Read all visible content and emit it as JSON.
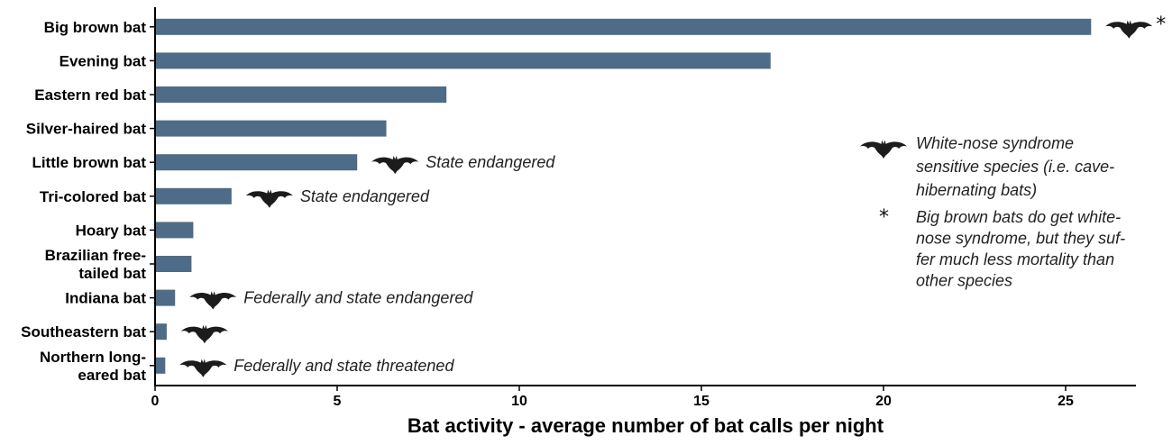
{
  "chart_data": {
    "type": "bar",
    "orientation": "horizontal",
    "categories": [
      [
        "Big brown bat"
      ],
      [
        "Evening bat"
      ],
      [
        "Eastern red bat"
      ],
      [
        "Silver-haired bat"
      ],
      [
        "Little brown bat"
      ],
      [
        "Tri-colored bat"
      ],
      [
        "Hoary bat"
      ],
      [
        "Brazilian free-",
        "tailed bat"
      ],
      [
        "Indiana bat"
      ],
      [
        "Southeastern bat"
      ],
      [
        "Northern long-",
        "eared bat"
      ]
    ],
    "values": [
      25.7,
      16.9,
      8.0,
      6.35,
      5.55,
      2.1,
      1.05,
      1.0,
      0.55,
      0.32,
      0.28
    ],
    "wns_sensitive": [
      true,
      false,
      false,
      false,
      true,
      true,
      false,
      false,
      true,
      true,
      true
    ],
    "status": [
      "",
      "",
      "",
      "",
      "State endangered",
      "State endangered",
      "",
      "",
      "Federally and state endangered",
      "",
      "Federally and state threatened"
    ],
    "asterisk": [
      true,
      false,
      false,
      false,
      false,
      false,
      false,
      false,
      false,
      false,
      false
    ],
    "bar_color": "#4e6b87",
    "xlim": [
      0,
      27
    ],
    "xticks": [
      0,
      5,
      10,
      15,
      20,
      25
    ],
    "xlabel": "Bat activity - average number of bat calls per night",
    "ylabel": "",
    "title": "",
    "grid": false,
    "legend": {
      "placement": "right",
      "icon": "bat-icon",
      "icon_label": [
        "White-nose syndrome",
        "sensitive species (i.e. cave-",
        "hibernating bats)"
      ],
      "star_symbol": "*",
      "star_label": [
        "Big brown bats do get white-",
        "nose syndrome, but they suf-",
        "fer much less mortality than",
        "other species"
      ]
    }
  }
}
